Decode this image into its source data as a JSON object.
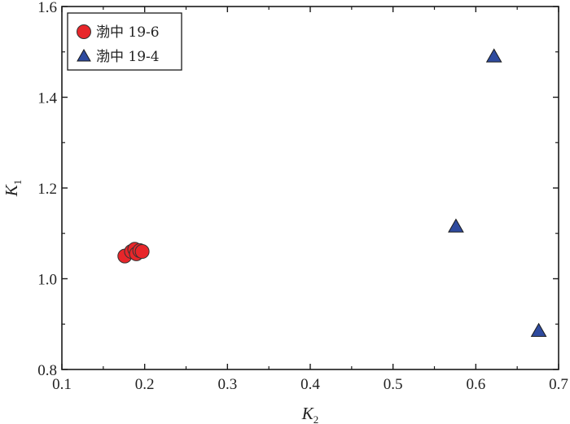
{
  "chart_data": {
    "type": "scatter",
    "title": "",
    "xlabel": {
      "main": "K",
      "sub": "2"
    },
    "ylabel": {
      "main": "K",
      "sub": "1"
    },
    "xlim": [
      0.1,
      0.7
    ],
    "ylim": [
      0.8,
      1.6
    ],
    "x_ticks": [
      "0.1",
      "0.2",
      "0.3",
      "0.4",
      "0.5",
      "0.6",
      "0.7"
    ],
    "y_ticks": [
      "0.8",
      "1.0",
      "1.2",
      "1.4",
      "1.6"
    ],
    "grid": false,
    "legend_position": "top-left",
    "series": [
      {
        "name": "渤中 19-6",
        "marker": "circle",
        "color": "#e8262a",
        "points": [
          {
            "x": 0.176,
            "y": 1.05
          },
          {
            "x": 0.184,
            "y": 1.06
          },
          {
            "x": 0.188,
            "y": 1.065
          },
          {
            "x": 0.19,
            "y": 1.055
          },
          {
            "x": 0.194,
            "y": 1.062
          },
          {
            "x": 0.197,
            "y": 1.06
          }
        ]
      },
      {
        "name": "渤中 19-4",
        "marker": "triangle",
        "color": "#2e4a9e",
        "points": [
          {
            "x": 0.622,
            "y": 1.49
          },
          {
            "x": 0.576,
            "y": 1.115
          },
          {
            "x": 0.676,
            "y": 0.885
          }
        ]
      }
    ]
  }
}
